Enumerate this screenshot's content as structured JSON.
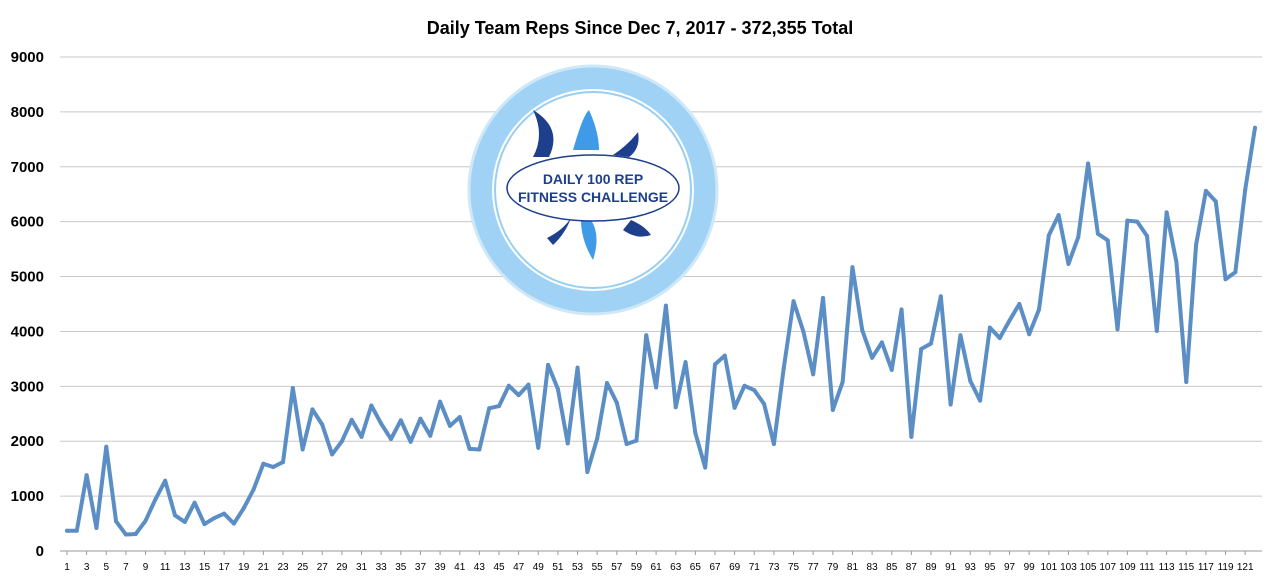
{
  "chart_data": {
    "type": "line",
    "title": "Daily Team Reps Since Dec 7, 2017 - 372,355 Total",
    "xlabel": "",
    "ylabel": "",
    "ylim": [
      0,
      9000
    ],
    "yticks": [
      0,
      1000,
      2000,
      3000,
      4000,
      5000,
      6000,
      7000,
      8000,
      9000
    ],
    "grid": true,
    "legend": "none",
    "series_color": "#5b8ec4",
    "x": [
      1,
      2,
      3,
      4,
      5,
      6,
      7,
      8,
      9,
      10,
      11,
      12,
      13,
      14,
      15,
      16,
      17,
      18,
      19,
      20,
      21,
      22,
      23,
      24,
      25,
      26,
      27,
      28,
      29,
      30,
      31,
      32,
      33,
      34,
      35,
      36,
      37,
      38,
      39,
      40,
      41,
      42,
      43,
      44,
      45,
      46,
      47,
      48,
      49,
      50,
      51,
      52,
      53,
      54,
      55,
      56,
      57,
      58,
      59,
      60,
      61,
      62,
      63,
      64,
      65,
      66,
      67,
      68,
      69,
      70,
      71,
      72,
      73,
      74,
      75,
      76,
      77,
      78,
      79,
      80,
      81,
      82,
      83,
      84,
      85,
      86,
      87,
      88,
      89,
      90,
      91,
      92,
      93,
      94,
      95,
      96,
      97,
      98,
      99,
      100,
      101,
      102,
      103,
      104,
      105,
      106,
      107,
      108,
      109,
      110,
      111,
      112,
      113,
      114,
      115,
      116,
      117,
      118,
      119,
      120,
      121,
      122
    ],
    "x_tick_labels": [
      "1",
      "3",
      "5",
      "7",
      "9",
      "11",
      "13",
      "15",
      "17",
      "19",
      "21",
      "23",
      "25",
      "27",
      "29",
      "31",
      "33",
      "35",
      "37",
      "39",
      "41",
      "43",
      "45",
      "47",
      "49",
      "51",
      "53",
      "55",
      "57",
      "59",
      "61",
      "63",
      "65",
      "67",
      "69",
      "71",
      "73",
      "75",
      "77",
      "79",
      "81",
      "83",
      "85",
      "87",
      "89",
      "91",
      "93",
      "95",
      "97",
      "99",
      "101",
      "103",
      "105",
      "107",
      "109",
      "111",
      "113",
      "115",
      "117",
      "119",
      "121"
    ],
    "series": [
      {
        "values": [
          370,
          370,
          1380,
          420,
          1900,
          540,
          300,
          310,
          550,
          940,
          1280,
          650,
          530,
          880,
          490,
          600,
          680,
          500,
          780,
          1120,
          1590,
          1530,
          1620,
          2970,
          1850,
          2580,
          2300,
          1760,
          2000,
          2390,
          2080,
          2650,
          2320,
          2040,
          2380,
          1990,
          2410,
          2100,
          2720,
          2280,
          2440,
          1860,
          1850,
          2600,
          2640,
          3010,
          2840,
          3030,
          1880,
          3390,
          2950,
          1960,
          3340,
          1440,
          2050,
          3060,
          2700,
          1950,
          2010,
          3930,
          2980,
          4470,
          2620,
          3440,
          2150,
          1520,
          3400,
          3560,
          2610,
          3010,
          2930,
          2680,
          1950,
          3330,
          4550,
          4000,
          3220,
          4610,
          2570,
          3080,
          5170,
          4020,
          3520,
          3800,
          3300,
          4400,
          2080,
          3680,
          3780,
          4640,
          2670,
          3930,
          3100,
          2740,
          4070,
          3880,
          4200,
          4500,
          3950,
          4400,
          5750,
          6120,
          5230,
          5720,
          7060,
          5780,
          5660,
          4040,
          6020,
          6000,
          5740,
          4010,
          6170,
          5260,
          3080,
          5580,
          6560,
          6370,
          4950,
          5080,
          6580,
          7710
        ]
      }
    ]
  },
  "logo": {
    "line1": "DAILY 100 REP",
    "line2": "FITNESS CHALLENGE",
    "accent_light": "#3f9be8",
    "accent_dark": "#1d3f8c",
    "ring": "#9fd2f4"
  }
}
